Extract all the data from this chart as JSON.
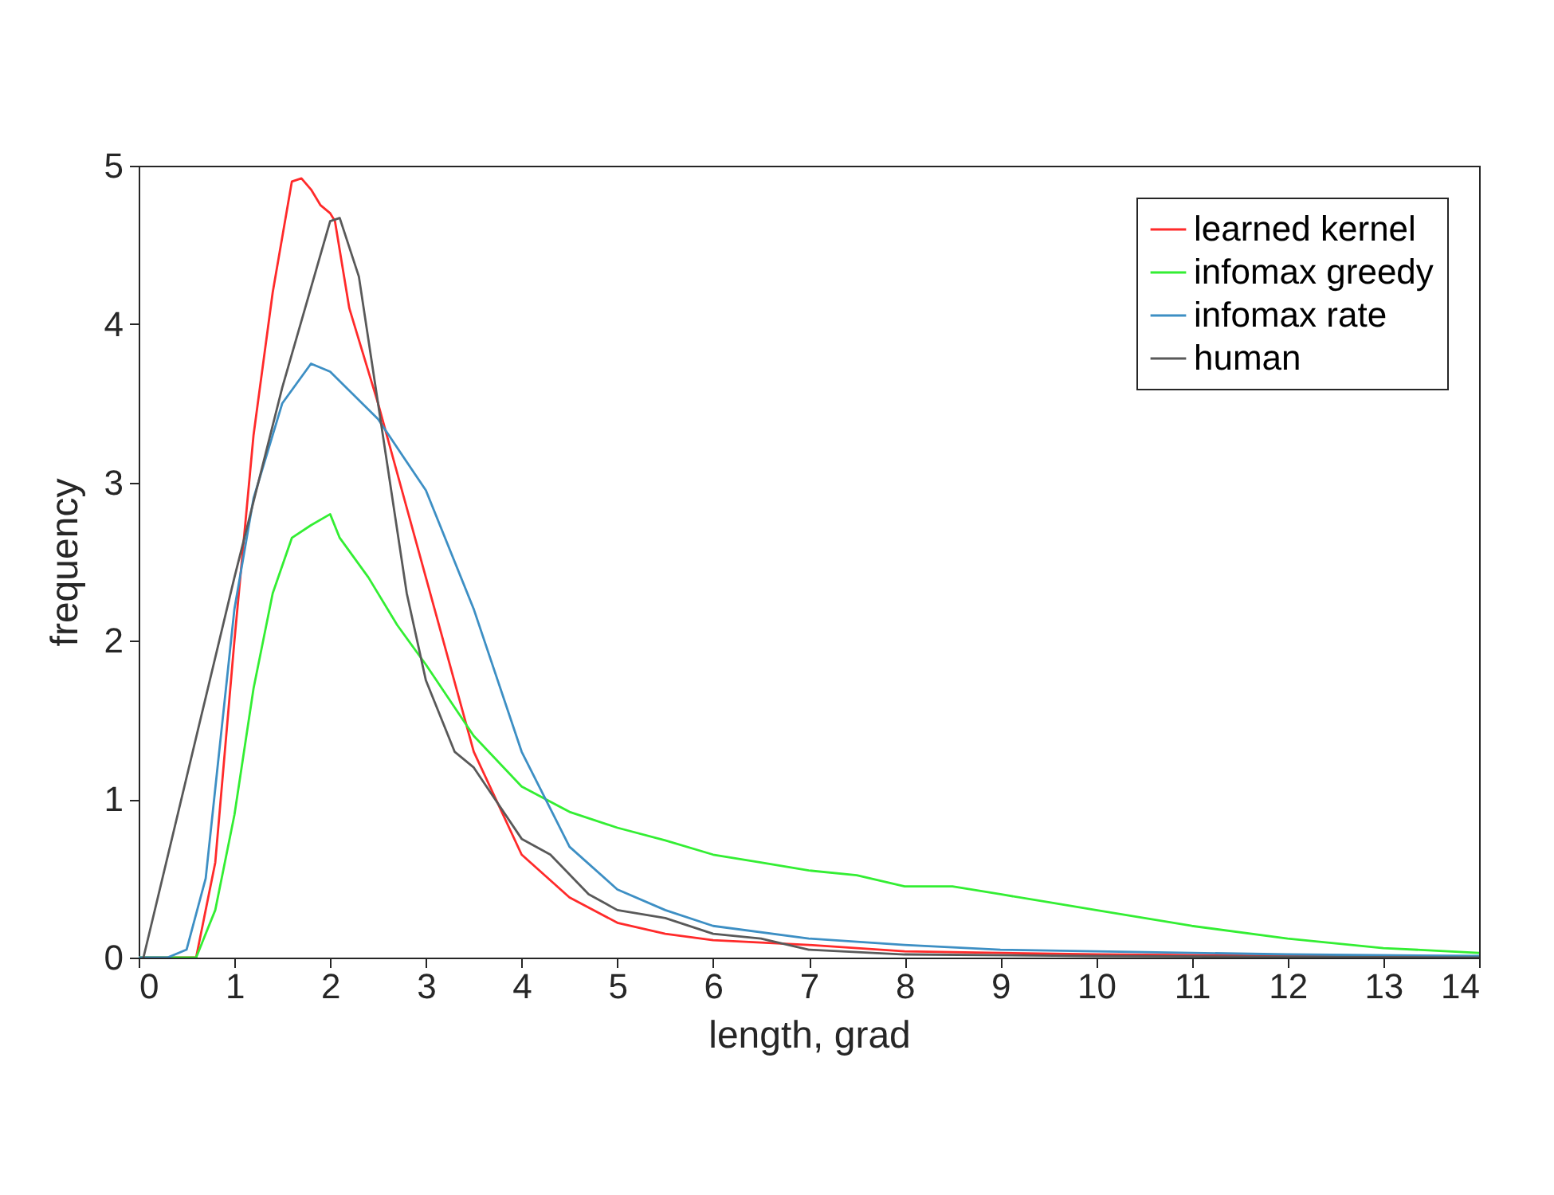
{
  "chart_data": {
    "type": "line",
    "xlabel": "length, grad",
    "ylabel": "frequency",
    "xlim": [
      0,
      14
    ],
    "ylim": [
      0,
      5
    ],
    "xticks": [
      0,
      1,
      2,
      3,
      4,
      5,
      6,
      7,
      8,
      9,
      10,
      11,
      12,
      13,
      14
    ],
    "yticks": [
      0,
      1,
      2,
      3,
      4,
      5
    ],
    "grid": false,
    "legend": "top right",
    "marker": "none",
    "line_style": "solid",
    "series": [
      {
        "name": "learned kernel",
        "color": "#ff2a2a",
        "x": [
          0,
          0.6,
          0.8,
          1.0,
          1.2,
          1.4,
          1.6,
          1.7,
          1.8,
          1.9,
          2.0,
          2.05,
          2.2,
          2.5,
          3.0,
          3.5,
          4.0,
          4.5,
          5.0,
          5.5,
          6,
          7,
          8,
          9,
          10,
          14
        ],
        "values": [
          0,
          0,
          0.6,
          2.0,
          3.3,
          4.2,
          4.9,
          4.92,
          4.85,
          4.75,
          4.7,
          4.65,
          4.1,
          3.5,
          2.4,
          1.3,
          0.65,
          0.38,
          0.22,
          0.15,
          0.11,
          0.08,
          0.04,
          0.03,
          0.02,
          0
        ]
      },
      {
        "name": "infomax greedy",
        "color": "#33ee33",
        "x": [
          0,
          0.6,
          0.8,
          1.0,
          1.2,
          1.4,
          1.6,
          1.8,
          2.0,
          2.1,
          2.4,
          2.7,
          3.0,
          3.5,
          4.0,
          4.5,
          5.0,
          5.5,
          6.0,
          6.5,
          7,
          7.5,
          8,
          8.5,
          9,
          9.5,
          10,
          11,
          12,
          13,
          14
        ],
        "values": [
          0,
          0,
          0.3,
          0.9,
          1.7,
          2.3,
          2.65,
          2.73,
          2.8,
          2.65,
          2.4,
          2.1,
          1.85,
          1.4,
          1.08,
          0.92,
          0.82,
          0.74,
          0.65,
          0.6,
          0.55,
          0.52,
          0.45,
          0.45,
          0.4,
          0.35,
          0.3,
          0.2,
          0.12,
          0.06,
          0.03
        ]
      },
      {
        "name": "infomax rate",
        "color": "#3d8fc4",
        "x": [
          0,
          0.3,
          0.5,
          0.7,
          1.0,
          1.2,
          1.5,
          1.8,
          2.0,
          2.5,
          3.0,
          3.5,
          4.0,
          4.5,
          5,
          5.5,
          6,
          7,
          8,
          9,
          10,
          12,
          14
        ],
        "values": [
          0,
          0,
          0.05,
          0.5,
          2.2,
          2.9,
          3.5,
          3.75,
          3.7,
          3.4,
          2.95,
          2.2,
          1.3,
          0.7,
          0.43,
          0.3,
          0.2,
          0.12,
          0.08,
          0.05,
          0.04,
          0.02,
          0.01
        ]
      },
      {
        "name": "human",
        "color": "#595959",
        "x": [
          0.05,
          1.0,
          1.5,
          2.0,
          2.1,
          2.3,
          2.5,
          2.8,
          3.0,
          3.3,
          3.5,
          4.0,
          4.3,
          4.7,
          5,
          5.5,
          6,
          6.5,
          7,
          8,
          10,
          14
        ],
        "values": [
          0,
          2.4,
          3.6,
          4.65,
          4.67,
          4.3,
          3.5,
          2.3,
          1.75,
          1.3,
          1.2,
          0.75,
          0.65,
          0.4,
          0.3,
          0.25,
          0.15,
          0.12,
          0.05,
          0.02,
          0.01,
          0
        ]
      }
    ]
  }
}
